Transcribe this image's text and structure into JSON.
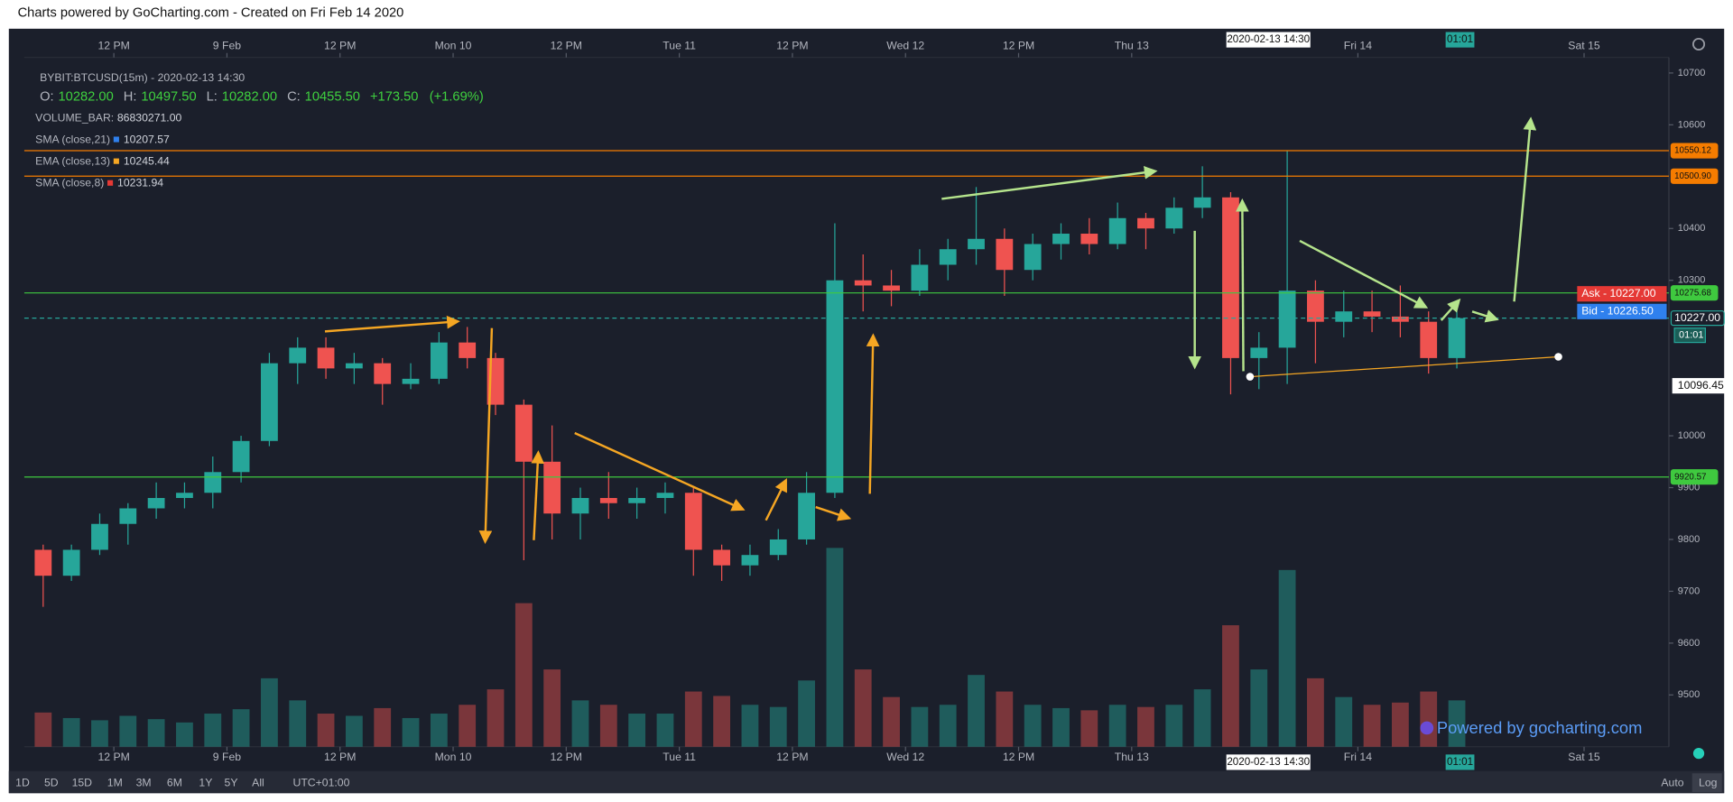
{
  "header": {
    "title": "Charts powered by GoCharting.com - Created on Fri Feb 14 2020"
  },
  "chart_data": {
    "type": "candlestick",
    "symbol": "BYBIT:BTCUSD(15m) - 2020-02-13 14:30",
    "ohlc": [
      {
        "key": "O:",
        "value": "10282.00"
      },
      {
        "key": "H:",
        "value": "10497.50"
      },
      {
        "key": "L:",
        "value": "10282.00"
      },
      {
        "key": "C:",
        "value": "10455.50"
      }
    ],
    "change": "+173.50",
    "change_pct": "(+1.69%)",
    "indicators": [
      {
        "name": "VOLUME_BAR:",
        "value": "86830271.00"
      },
      {
        "name": "SMA (close,21)",
        "value": "10207.57",
        "color": "#2f80ed"
      },
      {
        "name": "EMA (close,13)",
        "value": "10245.44",
        "color": "#f5a623"
      },
      {
        "name": "SMA (close,8)",
        "value": "10231.94",
        "color": "#e53935"
      }
    ],
    "x": [
      "2020-02-08 03:00",
      "2020-02-08 06:00",
      "2020-02-08 09:00",
      "2020-02-08 12:00",
      "2020-02-08 15:00",
      "2020-02-08 18:00",
      "2020-02-08 21:00",
      "2020-02-09 00:00",
      "2020-02-09 03:00",
      "2020-02-09 06:00",
      "2020-02-09 09:00",
      "2020-02-09 12:00",
      "2020-02-09 15:00",
      "2020-02-09 18:00",
      "2020-02-09 21:00",
      "2020-02-10 00:00",
      "2020-02-10 03:00",
      "2020-02-10 06:00",
      "2020-02-10 09:00",
      "2020-02-10 12:00",
      "2020-02-10 15:00",
      "2020-02-10 18:00",
      "2020-02-10 21:00",
      "2020-02-11 00:00",
      "2020-02-11 03:00",
      "2020-02-11 06:00",
      "2020-02-11 09:00",
      "2020-02-11 12:00",
      "2020-02-11 15:00",
      "2020-02-11 18:00",
      "2020-02-11 21:00",
      "2020-02-12 00:00",
      "2020-02-12 03:00",
      "2020-02-12 06:00",
      "2020-02-12 09:00",
      "2020-02-12 12:00",
      "2020-02-12 15:00",
      "2020-02-12 18:00",
      "2020-02-12 21:00",
      "2020-02-13 00:00",
      "2020-02-13 03:00",
      "2020-02-13 06:00",
      "2020-02-13 09:00",
      "2020-02-13 12:00",
      "2020-02-13 15:00",
      "2020-02-13 18:00",
      "2020-02-13 21:00",
      "2020-02-14 00:00",
      "2020-02-14 03:00",
      "2020-02-14 06:00",
      "2020-02-14 09:00"
    ],
    "open": [
      9780,
      9730,
      9780,
      9830,
      9860,
      9880,
      9890,
      9930,
      9990,
      10140,
      10170,
      10130,
      10140,
      10100,
      10110,
      10180,
      10150,
      10060,
      9950,
      9850,
      9880,
      9870,
      9880,
      9890,
      9780,
      9750,
      9770,
      9800,
      9890,
      10300,
      10290,
      10280,
      10330,
      10360,
      10380,
      10320,
      10370,
      10390,
      10370,
      10420,
      10400,
      10440,
      10460,
      10150,
      10170,
      10280,
      10220,
      10240,
      10230,
      10220,
      10150
    ],
    "high": [
      9790,
      9790,
      9850,
      9870,
      9910,
      9910,
      9960,
      10000,
      10160,
      10190,
      10190,
      10160,
      10150,
      10140,
      10200,
      10210,
      10160,
      10070,
      10020,
      9900,
      9930,
      9900,
      9910,
      9900,
      9790,
      9790,
      9820,
      9930,
      10410,
      10350,
      10320,
      10360,
      10380,
      10480,
      10400,
      10390,
      10410,
      10420,
      10450,
      10430,
      10460,
      10520,
      10470,
      10200,
      10550,
      10300,
      10280,
      10280,
      10290,
      10240,
      10240
    ],
    "low": [
      9670,
      9720,
      9770,
      9790,
      9840,
      9860,
      9860,
      9910,
      9980,
      10100,
      10110,
      10100,
      10060,
      10090,
      10100,
      10130,
      10040,
      9760,
      9800,
      9800,
      9840,
      9840,
      9850,
      9730,
      9720,
      9730,
      9760,
      9790,
      9880,
      10240,
      10250,
      10270,
      10300,
      10330,
      10270,
      10300,
      10340,
      10350,
      10360,
      10360,
      10390,
      10420,
      10080,
      10090,
      10100,
      10140,
      10190,
      10200,
      10190,
      10120,
      10130
    ],
    "close": [
      9730,
      9780,
      9830,
      9860,
      9880,
      9890,
      9930,
      9990,
      10140,
      10170,
      10130,
      10140,
      10100,
      10110,
      10180,
      10150,
      10060,
      9950,
      9850,
      9880,
      9870,
      9880,
      9890,
      9780,
      9750,
      9770,
      9800,
      9890,
      10300,
      10290,
      10280,
      10330,
      10360,
      10380,
      10320,
      10370,
      10390,
      10370,
      10420,
      10400,
      10440,
      10460,
      10150,
      10170,
      10280,
      10220,
      10240,
      10230,
      10220,
      10150,
      10227
    ],
    "volume": [
      310000000,
      260000000,
      240000000,
      280000000,
      250000000,
      220000000,
      300000000,
      340000000,
      620000000,
      420000000,
      300000000,
      280000000,
      350000000,
      260000000,
      300000000,
      380000000,
      520000000,
      1300000000,
      700000000,
      420000000,
      380000000,
      300000000,
      300000000,
      500000000,
      460000000,
      380000000,
      360000000,
      600000000,
      1800000000,
      700000000,
      450000000,
      360000000,
      380000000,
      650000000,
      500000000,
      380000000,
      350000000,
      330000000,
      380000000,
      360000000,
      380000000,
      520000000,
      1100000000,
      700000000,
      1600000000,
      620000000,
      450000000,
      380000000,
      400000000,
      500000000,
      420000000
    ],
    "xlim": [
      "2020-02-08 02:30",
      "2020-02-15 09:00"
    ],
    "ylim": [
      9400,
      10730
    ],
    "yticks": [
      9500,
      9600,
      9700,
      9800,
      9900,
      10000,
      10300,
      10400,
      10600,
      10700
    ],
    "xticks": [
      {
        "value": "2020-02-08 12:00",
        "label": "12 PM"
      },
      {
        "value": "2020-02-09 00:00",
        "label": "9 Feb"
      },
      {
        "value": "2020-02-09 12:00",
        "label": "12 PM"
      },
      {
        "value": "2020-02-10 00:00",
        "label": "Mon 10"
      },
      {
        "value": "2020-02-10 12:00",
        "label": "12 PM"
      },
      {
        "value": "2020-02-11 00:00",
        "label": "Tue 11"
      },
      {
        "value": "2020-02-11 12:00",
        "label": "12 PM"
      },
      {
        "value": "2020-02-12 00:00",
        "label": "Wed 12"
      },
      {
        "value": "2020-02-12 12:00",
        "label": "12 PM"
      },
      {
        "value": "2020-02-13 00:00",
        "label": "Thu 13"
      },
      {
        "value": "2020-02-14 00:00",
        "label": "Fri 14"
      },
      {
        "value": "2020-02-15 00:00",
        "label": "Sat 15"
      }
    ],
    "grid": false,
    "up_color": "#26a69a",
    "down_color": "#ef5350",
    "levels": [
      {
        "value": 10550.12,
        "label": "10550.12",
        "color": "#f57c00"
      },
      {
        "value": 10500.9,
        "label": "10500.90",
        "color": "#f57c00"
      },
      {
        "value": 10275.68,
        "label": "10275.68",
        "color": "#3fc93f"
      },
      {
        "value": 9920.57,
        "label": "9920.57",
        "color": "#3fc93f"
      },
      {
        "value": 10227,
        "label": "10227.00",
        "color": "#26a69a",
        "dashed": true
      }
    ],
    "price_marker": {
      "value": 10096.45,
      "label": "10096.45"
    },
    "ask_label": "Ask - 10227.00",
    "bid_label": "Bid - 10226.50",
    "countdown": "01:01",
    "crosshair_time": "2020-02-13 14:30"
  },
  "toolbar": {
    "ranges": [
      "1D",
      "5D",
      "15D",
      "1M",
      "3M",
      "6M",
      "1Y",
      "5Y",
      "All"
    ],
    "timezone": "UTC+01:00",
    "scale_buttons": [
      "Auto",
      "Log"
    ]
  },
  "watermark": "Powered by gocharting.com"
}
